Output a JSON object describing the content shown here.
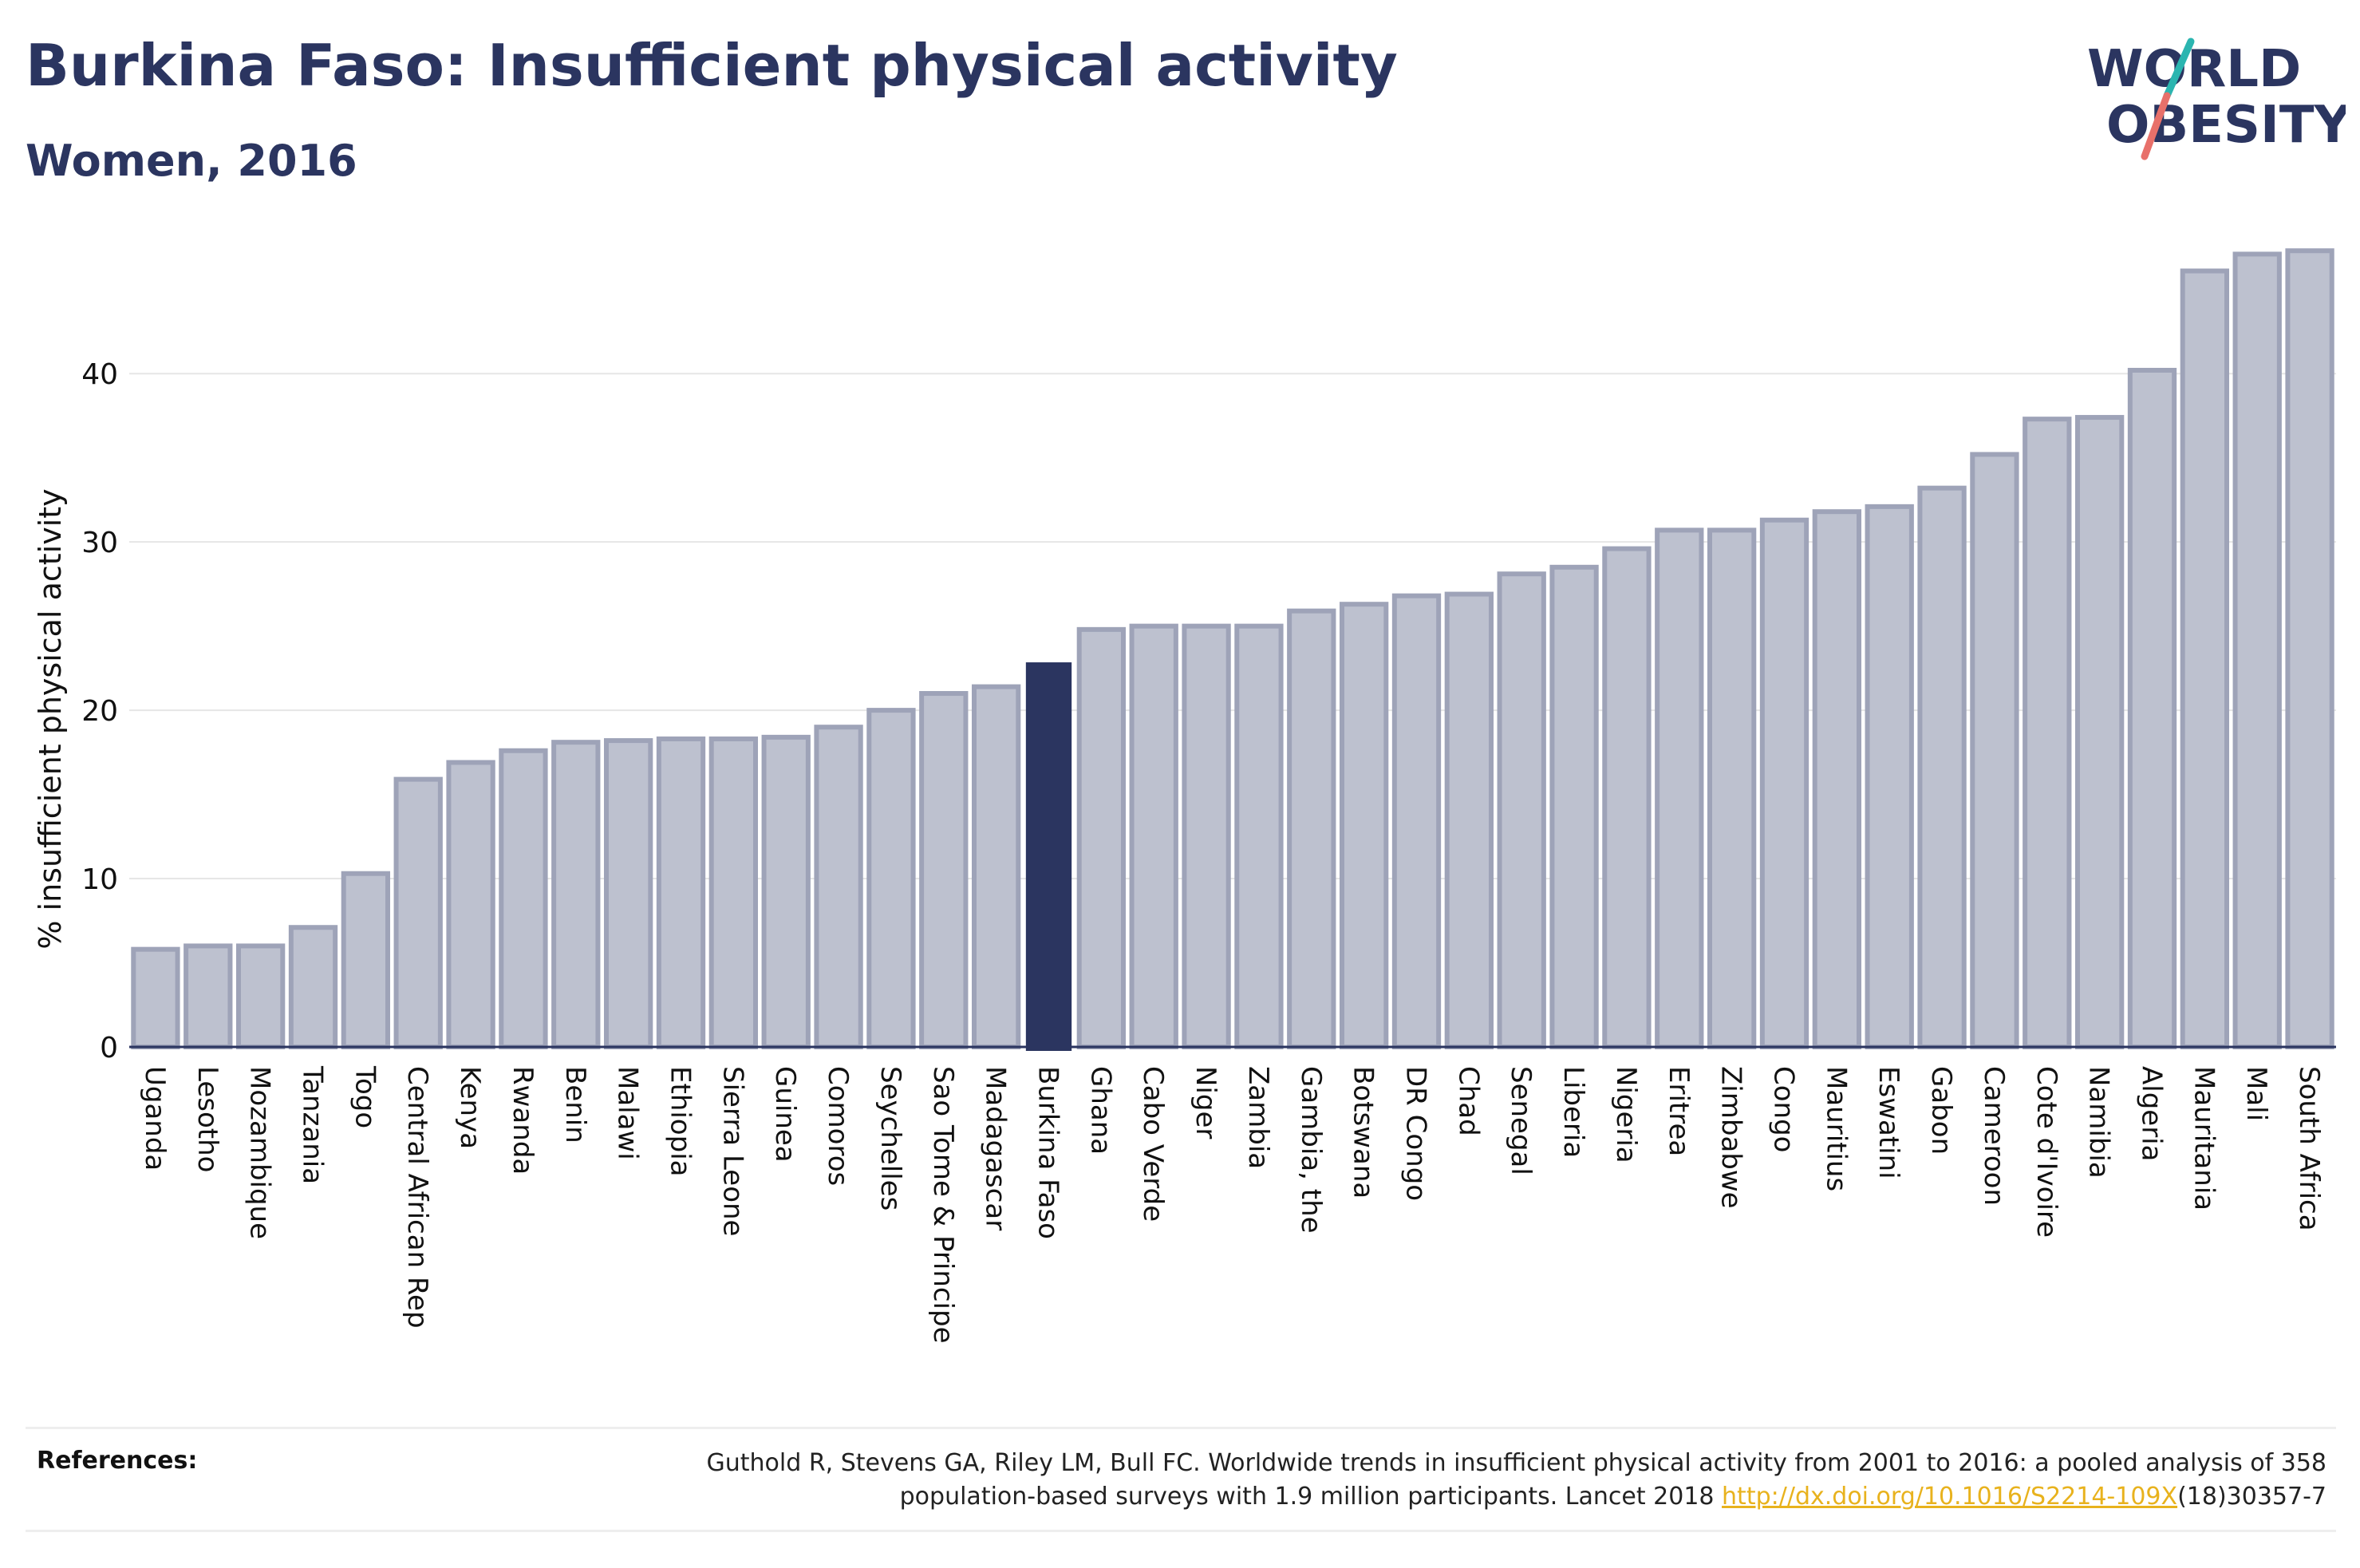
{
  "header": {
    "title": "Burkina Faso: Insufficient physical activity",
    "subtitle": "Women, 2016"
  },
  "logo": {
    "line1": "WORLD",
    "line2": "OBESITY",
    "colors": {
      "text": "#2b3560",
      "slash_teal": "#2bb5b0",
      "slash_coral": "#e8706a"
    }
  },
  "chart_data": {
    "type": "bar",
    "title": "Burkina Faso: Insufficient physical activity",
    "subtitle": "Women, 2016",
    "xlabel": "",
    "ylabel": "% insufficient physical activity",
    "ylim": [
      0,
      47.5
    ],
    "yticks": [
      0,
      10,
      20,
      30,
      40
    ],
    "grid": true,
    "highlight": "Burkina Faso",
    "colors": {
      "bar": "#bdc1cf",
      "bar_border": "#9ea3b8",
      "highlight": "#2b3560",
      "grid": "#e6e6e6"
    },
    "categories": [
      "Uganda",
      "Lesotho",
      "Mozambique",
      "Tanzania",
      "Togo",
      "Central African Rep",
      "Kenya",
      "Rwanda",
      "Benin",
      "Malawi",
      "Ethiopia",
      "Sierra Leone",
      "Guinea",
      "Comoros",
      "Seychelles",
      "Sao Tome & Principe",
      "Madagascar",
      "Burkina Faso",
      "Ghana",
      "Cabo Verde",
      "Niger",
      "Zambia",
      "Gambia, the",
      "Botswana",
      "DR Congo",
      "Chad",
      "Senegal",
      "Liberia",
      "Nigeria",
      "Eritrea",
      "Zimbabwe",
      "Congo",
      "Mauritius",
      "Eswatini",
      "Gabon",
      "Cameroon",
      "Cote d'Ivoire",
      "Namibia",
      "Algeria",
      "Mauritania",
      "Mali",
      "South Africa"
    ],
    "values": [
      5.8,
      6.0,
      6.0,
      7.1,
      10.3,
      15.9,
      16.9,
      17.6,
      18.1,
      18.2,
      18.3,
      18.3,
      18.4,
      19.0,
      20.0,
      21.0,
      21.4,
      22.8,
      24.8,
      25.0,
      25.0,
      25.0,
      25.9,
      26.3,
      26.8,
      26.9,
      28.1,
      28.5,
      29.6,
      30.7,
      30.7,
      31.3,
      31.8,
      32.1,
      33.2,
      35.2,
      37.3,
      37.4,
      40.2,
      46.1,
      47.1,
      47.3
    ]
  },
  "references": {
    "label": "References:",
    "text_line1": "Guthold R, Stevens GA, Riley LM, Bull FC. Worldwide trends in insufficient physical activity from 2001 to 2016: a pooled analysis of 358",
    "text_line2_pre": "population-based surveys with 1.9 million participants. Lancet 2018 ",
    "link_text": "http://dx.doi.org/10.1016/S2214-109X",
    "text_line2_post": "(18)30357-7"
  }
}
